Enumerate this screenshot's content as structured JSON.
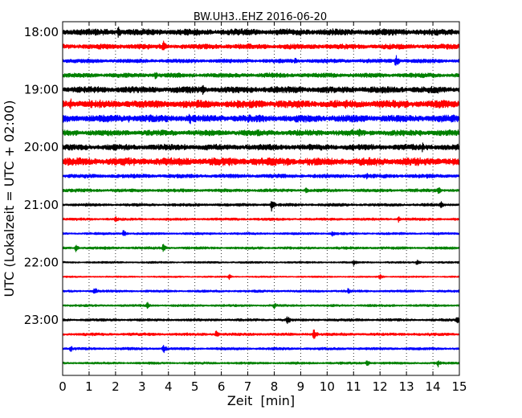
{
  "chart_data": {
    "type": "line",
    "title": "BW.UH3..EHZ 2016-06-20",
    "xlabel": "Zeit  [min]",
    "ylabel": "UTC (Lokalzeit = UTC + 02:00)",
    "xlim": [
      0,
      15
    ],
    "x_ticks": [
      "0",
      "1",
      "2",
      "3",
      "4",
      "5",
      "6",
      "7",
      "8",
      "9",
      "10",
      "11",
      "12",
      "13",
      "14",
      "15"
    ],
    "y_ticks": [
      "18:00",
      "19:00",
      "20:00",
      "21:00",
      "22:00",
      "23:00"
    ],
    "grid": "vertical dotted lines at each minute",
    "trace_interval_minutes": 15,
    "trace_colors": [
      "#000000",
      "#ff0000",
      "#0000ff",
      "#008000"
    ],
    "series": [
      {
        "start": "18:00",
        "color": "#000000",
        "amplitude": 0.5,
        "events": [
          {
            "t": 2.1,
            "amp": 0.95
          },
          {
            "t": 9.0,
            "amp": 0.65
          }
        ]
      },
      {
        "start": "18:15",
        "color": "#ff0000",
        "amplitude": 0.4,
        "events": [
          {
            "t": 3.8,
            "amp": 1.0
          },
          {
            "t": 7.0,
            "amp": 0.55
          }
        ]
      },
      {
        "start": "18:30",
        "color": "#0000ff",
        "amplitude": 0.3,
        "events": [
          {
            "t": 12.6,
            "amp": 1.0
          },
          {
            "t": 8.8,
            "amp": 0.55
          }
        ]
      },
      {
        "start": "18:45",
        "color": "#008000",
        "amplitude": 0.35,
        "events": [
          {
            "t": 3.5,
            "amp": 0.6
          },
          {
            "t": 14.0,
            "amp": 0.5
          }
        ]
      },
      {
        "start": "19:00",
        "color": "#000000",
        "amplitude": 0.5,
        "events": [
          {
            "t": 5.3,
            "amp": 0.9
          },
          {
            "t": 14.2,
            "amp": 0.6
          }
        ]
      },
      {
        "start": "19:15",
        "color": "#ff0000",
        "amplitude": 0.6,
        "events": [
          {
            "t": 0.3,
            "amp": 0.85
          },
          {
            "t": 7.5,
            "amp": 0.6
          }
        ]
      },
      {
        "start": "19:30",
        "color": "#0000ff",
        "amplitude": 0.55,
        "events": [
          {
            "t": 4.8,
            "amp": 1.0
          },
          {
            "t": 2.5,
            "amp": 0.6
          }
        ]
      },
      {
        "start": "19:45",
        "color": "#008000",
        "amplitude": 0.45,
        "events": [
          {
            "t": 11.2,
            "amp": 0.7
          },
          {
            "t": 13.5,
            "amp": 0.6
          }
        ]
      },
      {
        "start": "20:00",
        "color": "#000000",
        "amplitude": 0.45,
        "events": [
          {
            "t": 13.6,
            "amp": 0.85
          },
          {
            "t": 4.6,
            "amp": 0.5
          }
        ]
      },
      {
        "start": "20:15",
        "color": "#ff0000",
        "amplitude": 0.6,
        "events": [
          {
            "t": 8.5,
            "amp": 0.75
          },
          {
            "t": 1.2,
            "amp": 0.55
          }
        ]
      },
      {
        "start": "20:30",
        "color": "#0000ff",
        "amplitude": 0.3,
        "events": [
          {
            "t": 11.5,
            "amp": 0.5
          }
        ]
      },
      {
        "start": "20:45",
        "color": "#008000",
        "amplitude": 0.25,
        "events": [
          {
            "t": 14.2,
            "amp": 0.6
          },
          {
            "t": 9.2,
            "amp": 0.45
          }
        ]
      },
      {
        "start": "21:00",
        "color": "#000000",
        "amplitude": 0.22,
        "events": [
          {
            "t": 7.9,
            "amp": 1.0
          },
          {
            "t": 14.3,
            "amp": 0.6
          }
        ]
      },
      {
        "start": "21:15",
        "color": "#ff0000",
        "amplitude": 0.2,
        "events": [
          {
            "t": 2.0,
            "amp": 0.5
          },
          {
            "t": 12.7,
            "amp": 0.45
          }
        ]
      },
      {
        "start": "21:30",
        "color": "#0000ff",
        "amplitude": 0.18,
        "events": [
          {
            "t": 2.3,
            "amp": 0.55
          },
          {
            "t": 10.2,
            "amp": 0.5
          }
        ]
      },
      {
        "start": "21:45",
        "color": "#008000",
        "amplitude": 0.2,
        "events": [
          {
            "t": 3.8,
            "amp": 0.6
          },
          {
            "t": 0.5,
            "amp": 0.55
          }
        ]
      },
      {
        "start": "22:00",
        "color": "#000000",
        "amplitude": 0.15,
        "events": [
          {
            "t": 13.4,
            "amp": 0.5
          },
          {
            "t": 11.0,
            "amp": 0.45
          }
        ]
      },
      {
        "start": "22:15",
        "color": "#ff0000",
        "amplitude": 0.12,
        "events": [
          {
            "t": 12.0,
            "amp": 0.45
          },
          {
            "t": 6.3,
            "amp": 0.4
          }
        ]
      },
      {
        "start": "22:30",
        "color": "#0000ff",
        "amplitude": 0.18,
        "events": [
          {
            "t": 1.2,
            "amp": 0.6
          },
          {
            "t": 10.8,
            "amp": 0.55
          }
        ]
      },
      {
        "start": "22:45",
        "color": "#008000",
        "amplitude": 0.18,
        "events": [
          {
            "t": 3.2,
            "amp": 0.6
          },
          {
            "t": 8.0,
            "amp": 0.5
          }
        ]
      },
      {
        "start": "23:00",
        "color": "#000000",
        "amplitude": 0.2,
        "events": [
          {
            "t": 8.5,
            "amp": 0.65
          },
          {
            "t": 14.9,
            "amp": 0.6
          }
        ]
      },
      {
        "start": "23:15",
        "color": "#ff0000",
        "amplitude": 0.22,
        "events": [
          {
            "t": 9.5,
            "amp": 0.8
          },
          {
            "t": 5.8,
            "amp": 0.55
          }
        ]
      },
      {
        "start": "23:30",
        "color": "#0000ff",
        "amplitude": 0.2,
        "events": [
          {
            "t": 3.8,
            "amp": 0.75
          },
          {
            "t": 0.3,
            "amp": 0.5
          }
        ]
      },
      {
        "start": "23:45",
        "color": "#008000",
        "amplitude": 0.18,
        "events": [
          {
            "t": 11.5,
            "amp": 0.5
          },
          {
            "t": 14.2,
            "amp": 0.55
          }
        ]
      }
    ]
  }
}
